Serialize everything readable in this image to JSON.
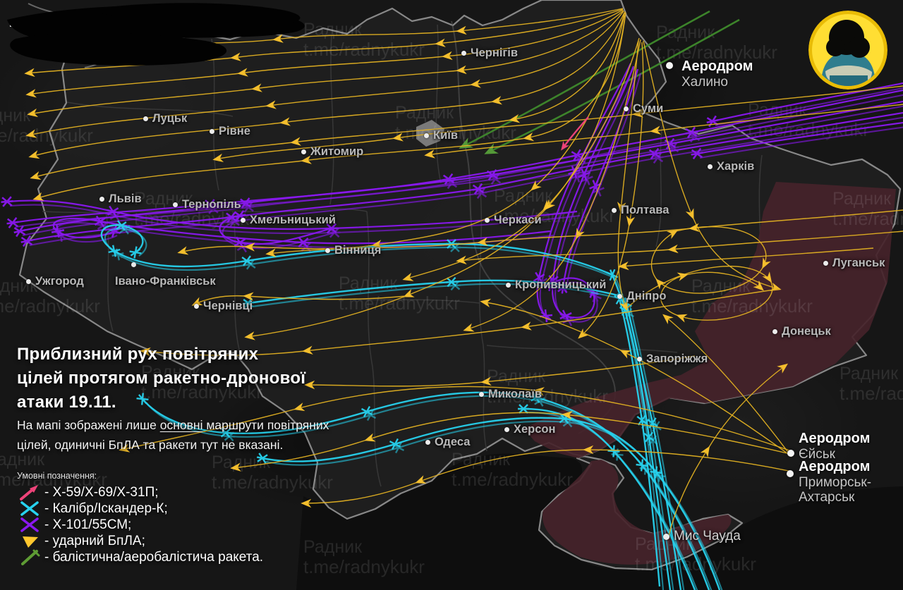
{
  "title": {
    "lines": [
      "Приблизний рух повітряних",
      "цілей протягом ракетно-дронової",
      "атаки 19.11."
    ]
  },
  "subtitle": {
    "pre": "На мапі зображені лише ",
    "em": "основні",
    "post": " маршрути повітряних цілей, одиничні БпЛА та ракети тут не вказані."
  },
  "legend": {
    "header": "Умовні позначення:",
    "items": [
      {
        "icon": "x59-arrow-icon",
        "color": "#EE4379",
        "label": "- X-59/X-69/X-31П;"
      },
      {
        "icon": "kalibr-x-icon",
        "color": "#27D2EE",
        "label": "- Калібр/Іскандер-К;"
      },
      {
        "icon": "x101-x-icon",
        "color": "#8A18F0",
        "label": "- X-101/55СМ;"
      },
      {
        "icon": "drone-tri-icon",
        "color": "#FFC72E",
        "label": "- ударний БпЛА;"
      },
      {
        "icon": "ballistic-icon",
        "color": "#5E9C34",
        "label": "- балістична/аеробалістича ракета."
      }
    ]
  },
  "watermark": {
    "line1": "Радник",
    "line2": "t.me/radnykukr"
  },
  "cities": [
    {
      "id": "chernihiv",
      "name": "Чернігів"
    },
    {
      "id": "sumy",
      "name": "Суми"
    },
    {
      "id": "kyiv",
      "name": "Київ"
    },
    {
      "id": "lutsk",
      "name": "Луцьк"
    },
    {
      "id": "rivne",
      "name": "Рівне"
    },
    {
      "id": "zhytomyr",
      "name": "Житомир"
    },
    {
      "id": "kharkiv",
      "name": "Харків"
    },
    {
      "id": "poltava",
      "name": "Полтава"
    },
    {
      "id": "lviv",
      "name": "Львів"
    },
    {
      "id": "ternopil",
      "name": "Тернопіль"
    },
    {
      "id": "khmelnytskyi",
      "name": "Хмельницький"
    },
    {
      "id": "vinnytsia",
      "name": "Вінниця"
    },
    {
      "id": "cherkasy",
      "name": "Черкаси"
    },
    {
      "id": "uzhhorod",
      "name": "Ужгород"
    },
    {
      "id": "ivano-frankivsk",
      "name": "Івано-Франківськ"
    },
    {
      "id": "chernivtsi",
      "name": "Чернівці"
    },
    {
      "id": "kropyvnytskyi",
      "name": "Кропивницький"
    },
    {
      "id": "dnipro",
      "name": "Дніпро"
    },
    {
      "id": "zaporizhzhia",
      "name": "Запоріжжя"
    },
    {
      "id": "donetsk",
      "name": "Донецьк"
    },
    {
      "id": "luhansk",
      "name": "Луганськ"
    },
    {
      "id": "mykolaiv",
      "name": "Миколаїв"
    },
    {
      "id": "kherson",
      "name": "Херсон"
    },
    {
      "id": "odesa",
      "name": "Одеса"
    },
    {
      "id": "mys-chauda",
      "name": "Мис Чауда",
      "poi": true
    }
  ],
  "airfields": [
    {
      "id": "khalino",
      "title": "Аеродром",
      "subtitle": "Халино"
    },
    {
      "id": "yeysk",
      "title": "Аеродром",
      "subtitle": "Єйськ"
    },
    {
      "id": "prymorsk",
      "title": "Аеродром",
      "subtitle": "Приморськ-Ахтарськ"
    }
  ],
  "colors": {
    "drone_line": "#E2B122",
    "drone_arrow": "#FFC72E",
    "cruise_purple": "#8A18F0",
    "kalibr_cyan": "#27D2EE",
    "x59_pink": "#EE4379",
    "ballistic_green": "#3F8A2C",
    "ballistic_arrow": "#57A03A",
    "occupied_red": "#45232A",
    "land": "#202020",
    "sea": "#0D0D0D",
    "border": "#9C9C9C",
    "oblast": "#3A3A3A"
  }
}
